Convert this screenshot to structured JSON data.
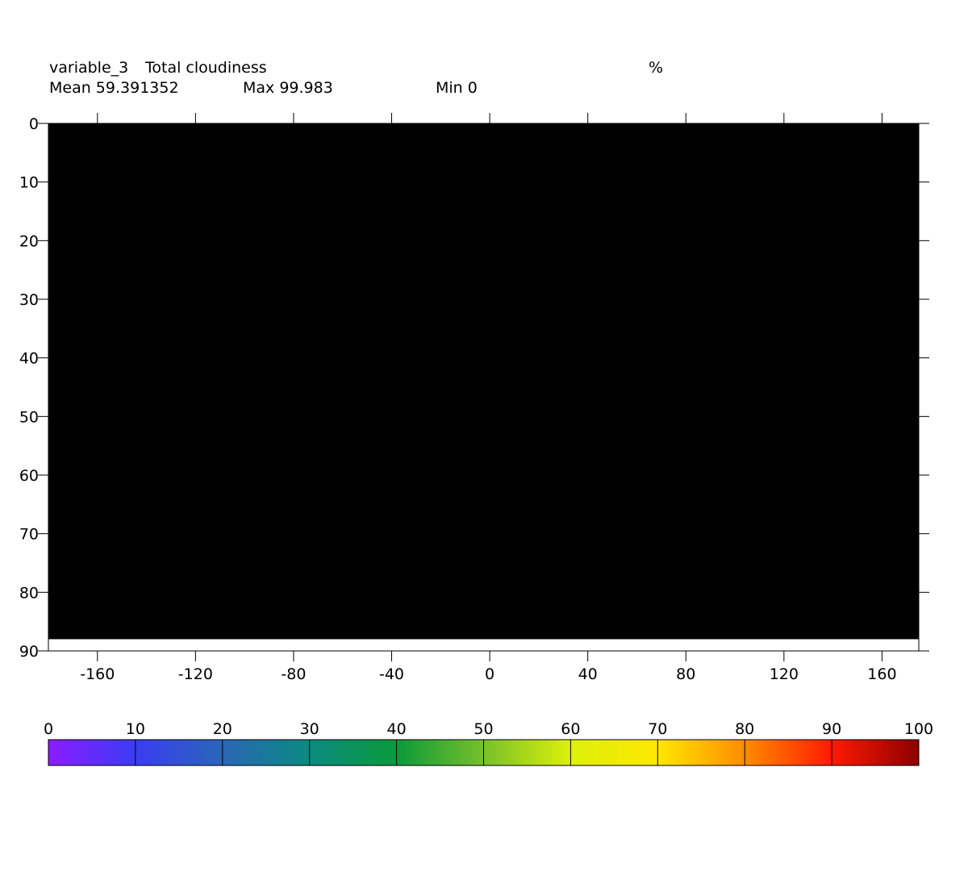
{
  "header": {
    "variable": "variable_3",
    "long_name": "Total cloudiness",
    "units": "%",
    "mean": "Mean 59.391352",
    "max": "Max 99.983",
    "min": "Min 0"
  },
  "chart_data": {
    "type": "heatmap",
    "title": "Total cloudiness",
    "xlim": [
      -180,
      175
    ],
    "ylim": [
      0,
      90
    ],
    "y_inverted": true,
    "x_ticks": [
      -160,
      -120,
      -80,
      -40,
      0,
      40,
      80,
      120,
      160
    ],
    "x_tick_labels": [
      "-160",
      "-120",
      "-80",
      "-40",
      "0",
      "40",
      "80",
      "120",
      "160"
    ],
    "y_ticks": [
      0,
      10,
      20,
      30,
      40,
      50,
      60,
      70,
      80,
      90
    ],
    "y_tick_labels": [
      "0",
      "10",
      "20",
      "30",
      "40",
      "50",
      "60",
      "70",
      "80",
      "90"
    ],
    "data_extent": {
      "x": [
        -180,
        175
      ],
      "y": [
        0,
        88
      ]
    },
    "fill_color": "#000000",
    "colorbar": {
      "min": 0,
      "max": 100,
      "ticks": [
        0,
        10,
        20,
        30,
        40,
        50,
        60,
        70,
        80,
        90,
        100
      ],
      "tick_labels": [
        "0",
        "10",
        "20",
        "30",
        "40",
        "50",
        "60",
        "70",
        "80",
        "90",
        "100"
      ],
      "colors": [
        "#8c1cff",
        "#3b3cf2",
        "#2a66b8",
        "#0a8a80",
        "#0a9a3a",
        "#78c02a",
        "#ddf00a",
        "#ffe800",
        "#ff8c00",
        "#ff1a00",
        "#8c0000"
      ]
    }
  }
}
